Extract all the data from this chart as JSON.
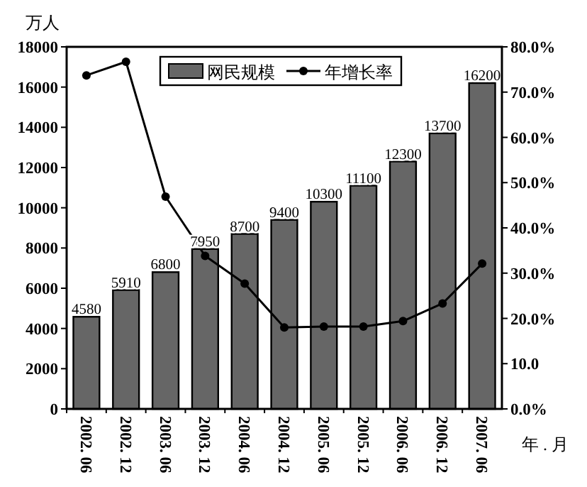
{
  "chart_data": {
    "type": "bar",
    "ylabel": "万人",
    "xlabel": "年 . 月",
    "legend": "top",
    "categories": [
      "2002. 06",
      "2002. 12",
      "2003. 06",
      "2003. 12",
      "2004. 06",
      "2004. 12",
      "2005. 06",
      "2005. 12",
      "2006. 06",
      "2006. 12",
      "2007. 06"
    ],
    "ylim": [
      0,
      18000
    ],
    "yticks": [
      0,
      2000,
      4000,
      6000,
      8000,
      10000,
      12000,
      14000,
      16000,
      18000
    ],
    "y2lim": [
      0,
      80
    ],
    "y2ticks": [
      {
        "value": 0,
        "label": "0.0%"
      },
      {
        "value": 10,
        "label": "10.0"
      },
      {
        "value": 20,
        "label": "20.0%"
      },
      {
        "value": 30,
        "label": "30.0%"
      },
      {
        "value": 40,
        "label": "40.0%"
      },
      {
        "value": 50,
        "label": "50.0%"
      },
      {
        "value": 60,
        "label": "60.0%"
      },
      {
        "value": 70,
        "label": "70.0%"
      },
      {
        "value": 80,
        "label": "80.0%"
      }
    ],
    "series": [
      {
        "name": "网民规模",
        "color": "#666666",
        "values": [
          4580,
          5910,
          6800,
          7950,
          8700,
          9400,
          10300,
          11100,
          12300,
          13700,
          16200
        ],
        "value_labels": [
          "4580",
          "5910",
          "6800",
          "7950",
          "8700",
          "9400",
          "10300",
          "11100",
          "12300",
          "13700",
          "16200"
        ]
      },
      {
        "name": "年增长率",
        "type": "line",
        "axis": "y2",
        "color": "#000000",
        "marker": "circle",
        "values": [
          73.7,
          76.7,
          46.9,
          33.8,
          27.7,
          18.0,
          18.2,
          18.2,
          19.4,
          23.3,
          32.1
        ]
      }
    ]
  }
}
